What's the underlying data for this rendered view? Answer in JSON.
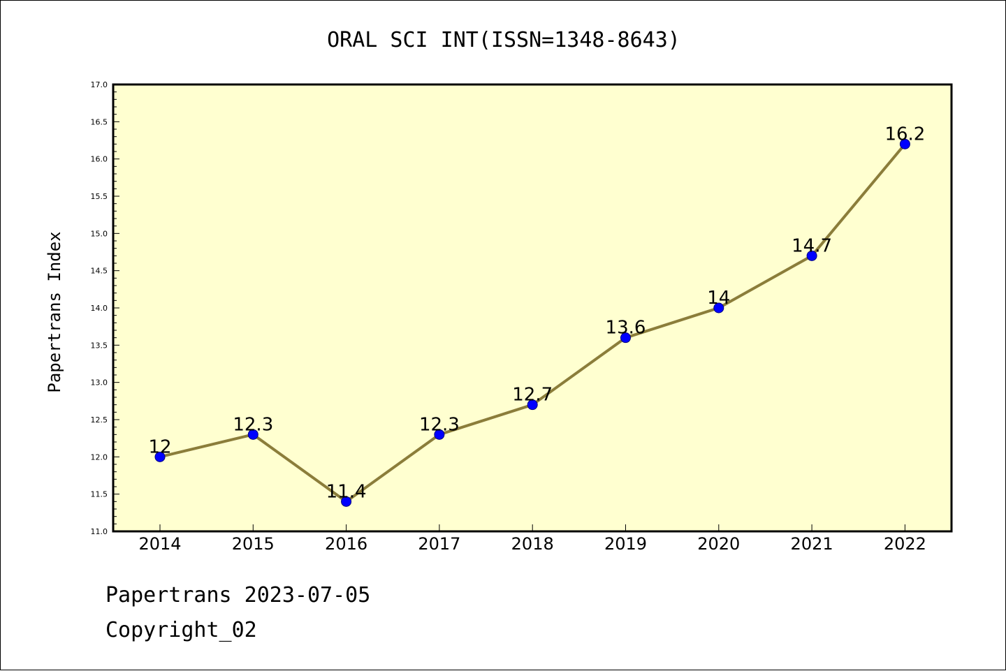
{
  "chart_data": {
    "type": "line",
    "title": "ORAL SCI INT(ISSN=1348-8643)",
    "xlabel": "",
    "ylabel": "Papertrans Index",
    "categories": [
      "2014",
      "2015",
      "2016",
      "2017",
      "2018",
      "2019",
      "2020",
      "2021",
      "2022"
    ],
    "values": [
      12,
      12.3,
      11.4,
      12.3,
      12.7,
      13.6,
      14,
      14.7,
      16.2
    ],
    "data_labels": [
      "12",
      "12.3",
      "11.4",
      "12.3",
      "12.7",
      "13.6",
      "14",
      "14.7",
      "16.2"
    ],
    "ylim": [
      11.0,
      17.0
    ],
    "yticks": [
      "11.0",
      "11.5",
      "12.0",
      "12.5",
      "13.0",
      "13.5",
      "14.0",
      "14.5",
      "15.0",
      "15.5",
      "16.0",
      "16.5",
      "17.0"
    ],
    "grid": false,
    "legend": "none",
    "colors": {
      "plot_background": "#ffffd0",
      "line": "#8b7d3a",
      "marker_fill": "#0000ff",
      "marker_edge": "#000080"
    }
  },
  "footer": {
    "line1": "Papertrans 2023-07-05",
    "line2": "Copyright_02"
  }
}
